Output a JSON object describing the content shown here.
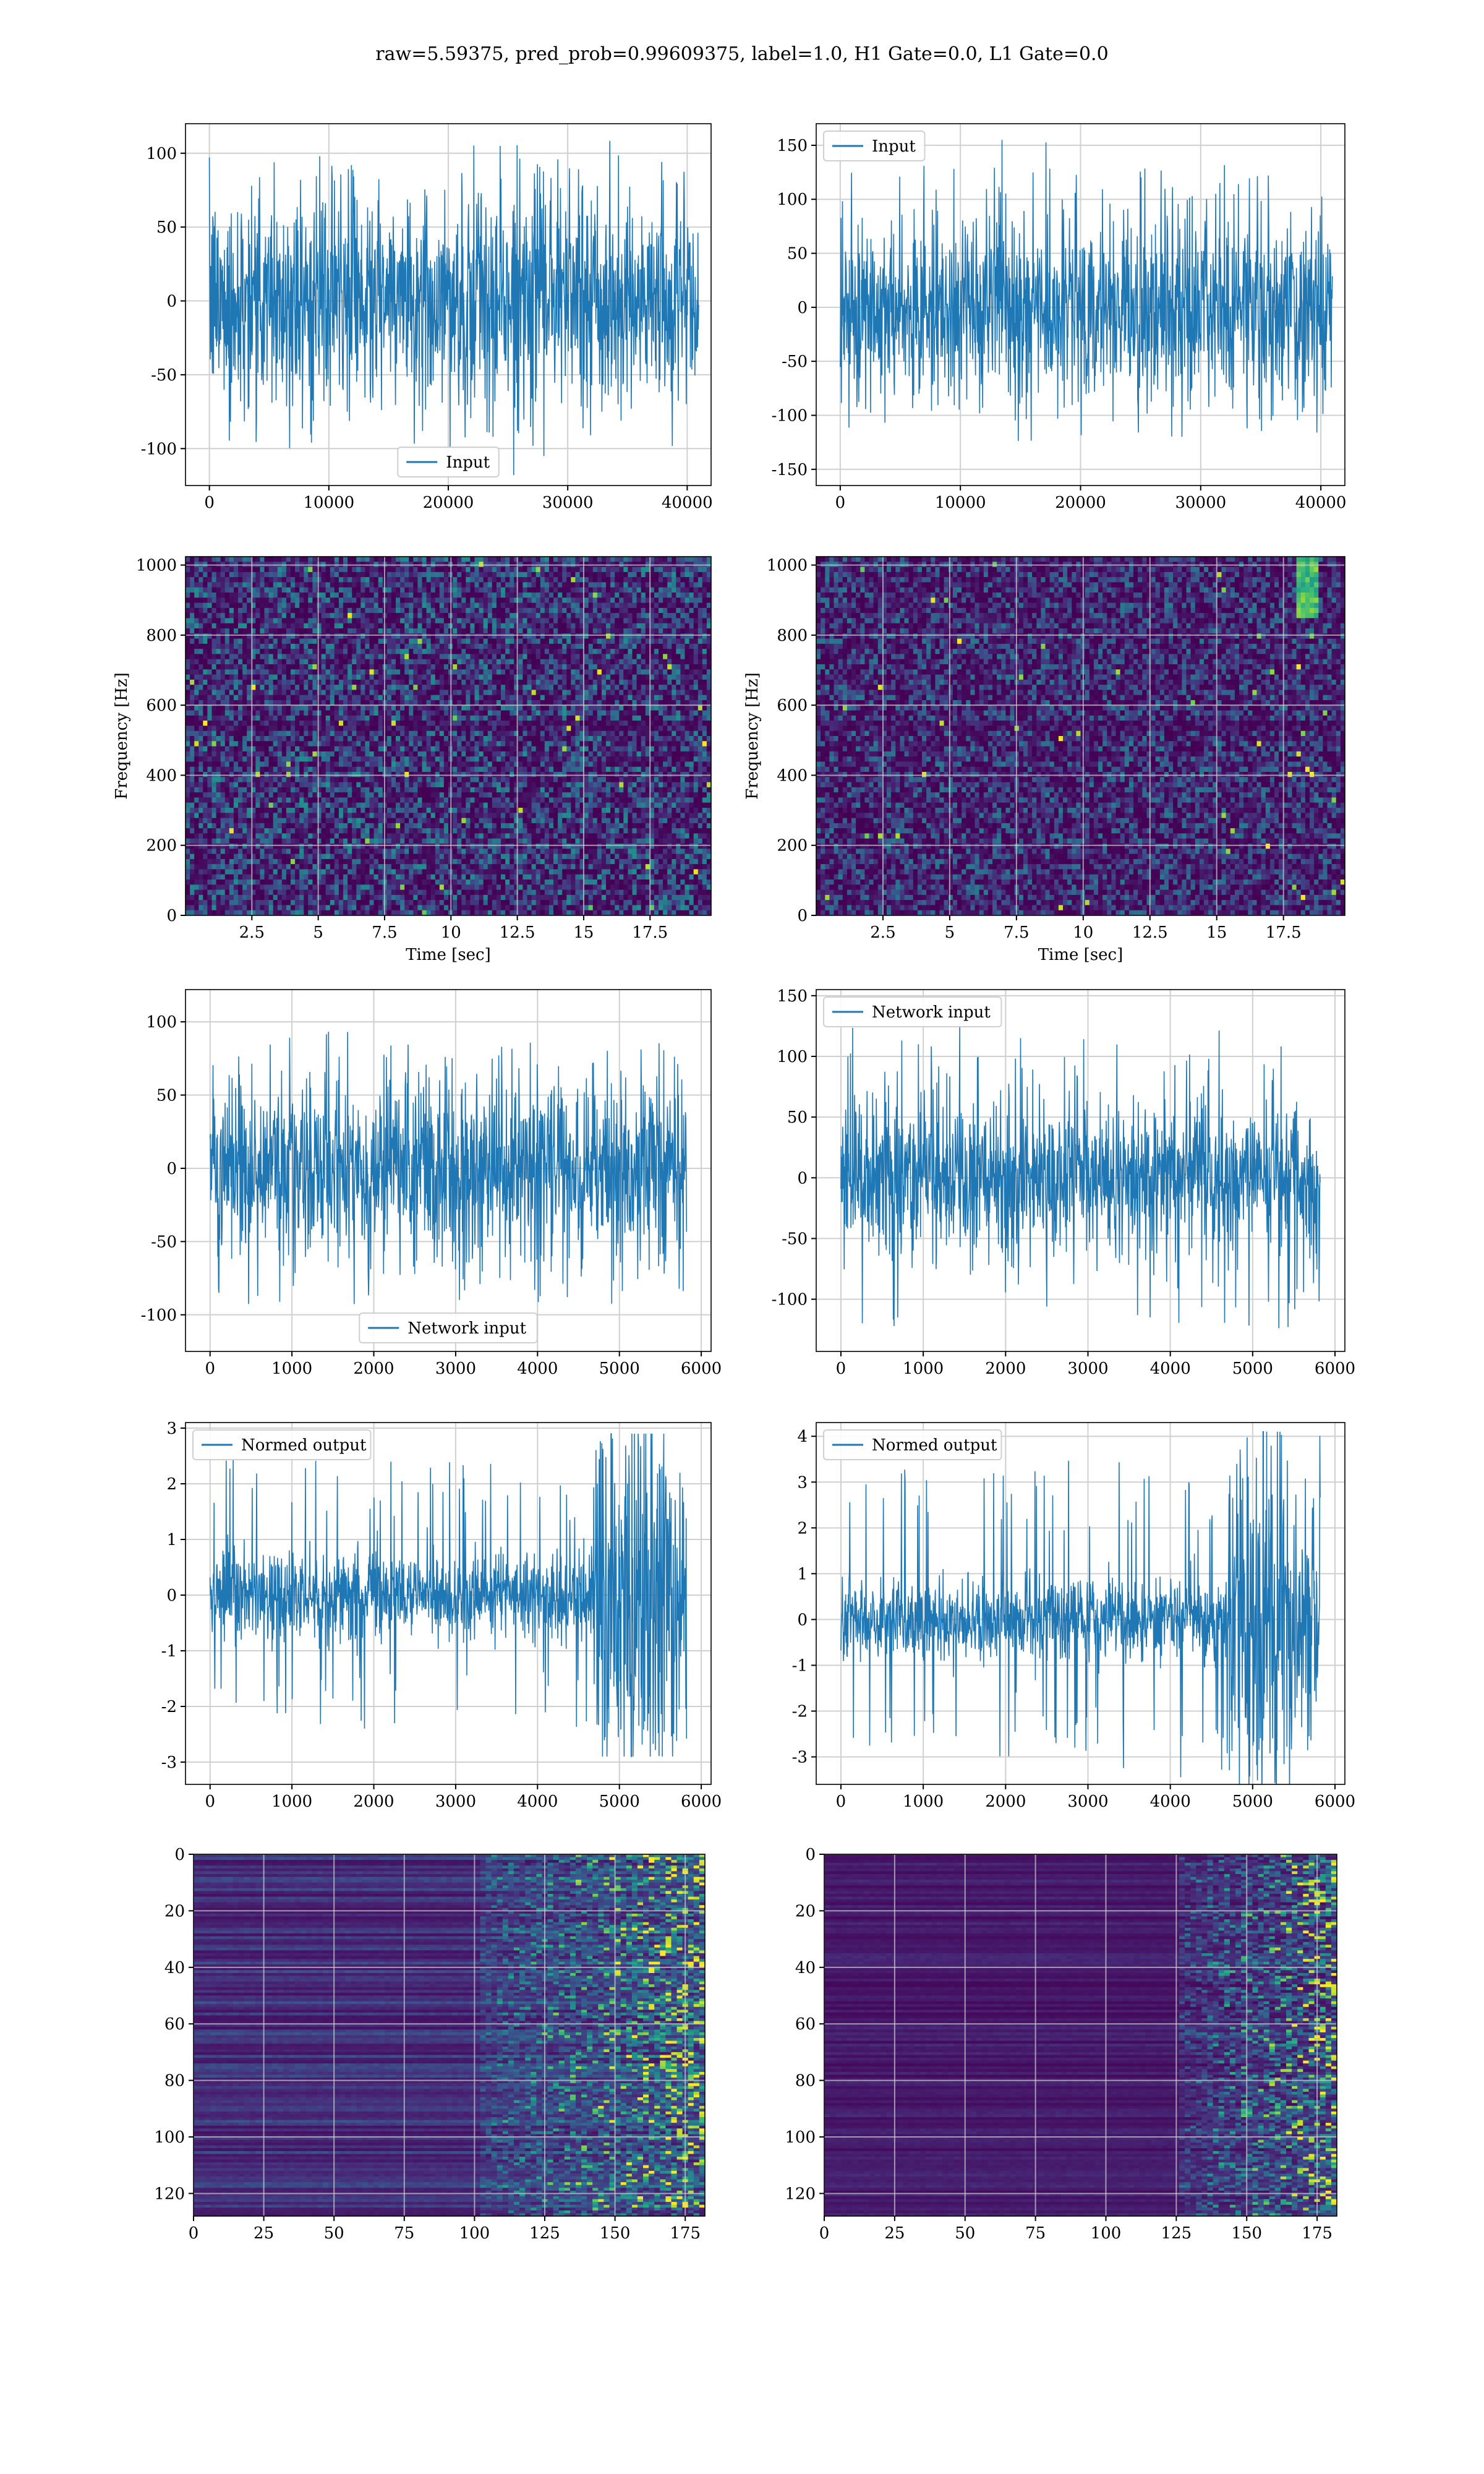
{
  "suptitle": "raw=5.59375, pred_prob=0.99609375, label=1.0, H1 Gate=0.0, L1 Gate=0.0",
  "colors": {
    "line": "#1f77b4",
    "grid": "#d0d0d0",
    "viridis_dark": "#440154"
  },
  "chart_data": [
    {
      "id": "p1",
      "type": "line",
      "series": [
        {
          "name": "Input",
          "amp": 35,
          "maxabs": 118
        }
      ],
      "xlim": [
        -2000,
        42000
      ],
      "ylim": [
        -125,
        120
      ],
      "xticks": [
        0,
        10000,
        20000,
        30000,
        40000
      ],
      "yticks": [
        -100,
        -50,
        0,
        50,
        100
      ],
      "legend_loc": "lower-center",
      "x": [
        0,
        40960
      ]
    },
    {
      "id": "p2",
      "type": "line",
      "series": [
        {
          "name": "Input",
          "amp": 40,
          "maxabs": 155
        }
      ],
      "xlim": [
        -2000,
        42000
      ],
      "ylim": [
        -165,
        170
      ],
      "xticks": [
        0,
        10000,
        20000,
        30000,
        40000
      ],
      "yticks": [
        -150,
        -100,
        -50,
        0,
        50,
        100,
        150
      ],
      "legend_loc": "upper-left",
      "x": [
        0,
        40960
      ]
    },
    {
      "id": "p3",
      "type": "heatmap",
      "xlabel": "Time [sec]",
      "ylabel": "Frequency [Hz]",
      "xlim": [
        0,
        19.8
      ],
      "ylim": [
        0,
        1024
      ],
      "xticks": [
        2.5,
        5.0,
        7.5,
        10.0,
        12.5,
        15.0,
        17.5
      ],
      "yticks": [
        0,
        200,
        400,
        600,
        800,
        1000
      ]
    },
    {
      "id": "p4",
      "type": "heatmap",
      "xlabel": "Time [sec]",
      "ylabel": "Frequency [Hz]",
      "xlim": [
        0,
        19.8
      ],
      "ylim": [
        0,
        1024
      ],
      "xticks": [
        2.5,
        5.0,
        7.5,
        10.0,
        12.5,
        15.0,
        17.5
      ],
      "yticks": [
        0,
        200,
        400,
        600,
        800,
        1000
      ]
    },
    {
      "id": "p5",
      "type": "line",
      "series": [
        {
          "name": "Network input",
          "amp": 30,
          "maxabs": 110
        }
      ],
      "xlim": [
        -300,
        6120
      ],
      "ylim": [
        -125,
        122
      ],
      "xticks": [
        0,
        1000,
        2000,
        3000,
        4000,
        5000,
        6000
      ],
      "yticks": [
        -100,
        -50,
        0,
        50,
        100
      ],
      "legend_loc": "lower-center",
      "x": [
        0,
        5820
      ]
    },
    {
      "id": "p6",
      "type": "line",
      "series": [
        {
          "name": "Network input",
          "amp": 30,
          "maxabs": 148
        }
      ],
      "xlim": [
        -300,
        6120
      ],
      "ylim": [
        -143,
        155
      ],
      "xticks": [
        0,
        1000,
        2000,
        3000,
        4000,
        5000,
        6000
      ],
      "yticks": [
        -100,
        -50,
        0,
        50,
        100,
        150
      ],
      "legend_loc": "upper-left",
      "x": [
        0,
        5820
      ]
    },
    {
      "id": "p7",
      "type": "line",
      "series": [
        {
          "name": "Normed output",
          "amp": 0.4,
          "maxabs": 2.9,
          "burst_start": 4700,
          "burst_amp": 1.1
        }
      ],
      "xlim": [
        -300,
        6120
      ],
      "ylim": [
        -3.4,
        3.1
      ],
      "xticks": [
        0,
        1000,
        2000,
        3000,
        4000,
        5000,
        6000
      ],
      "yticks": [
        -3,
        -2,
        -1,
        0,
        1,
        2,
        3
      ],
      "legend_loc": "upper-left",
      "x": [
        0,
        5820
      ]
    },
    {
      "id": "p8",
      "type": "line",
      "series": [
        {
          "name": "Normed output",
          "amp": 0.45,
          "maxabs": 4.1,
          "burst_start": 4700,
          "burst_amp": 1.4
        }
      ],
      "xlim": [
        -300,
        6120
      ],
      "ylim": [
        -3.6,
        4.3
      ],
      "xticks": [
        0,
        1000,
        2000,
        3000,
        4000,
        5000,
        6000
      ],
      "yticks": [
        -3,
        -2,
        -1,
        0,
        1,
        2,
        3,
        4
      ],
      "legend_loc": "upper-left",
      "x": [
        0,
        5820
      ]
    },
    {
      "id": "p9",
      "type": "heatmap",
      "xlim": [
        0,
        182
      ],
      "ylim": [
        128,
        0
      ],
      "xticks": [
        0,
        25,
        50,
        75,
        100,
        125,
        150,
        175
      ],
      "yticks": [
        0,
        20,
        40,
        60,
        80,
        100,
        120
      ],
      "activity_start": 100
    },
    {
      "id": "p10",
      "type": "heatmap",
      "xlim": [
        0,
        182
      ],
      "ylim": [
        128,
        0
      ],
      "xticks": [
        0,
        25,
        50,
        75,
        100,
        125,
        150,
        175
      ],
      "yticks": [
        0,
        20,
        40,
        60,
        80,
        100,
        120
      ],
      "activity_start": 125
    }
  ]
}
